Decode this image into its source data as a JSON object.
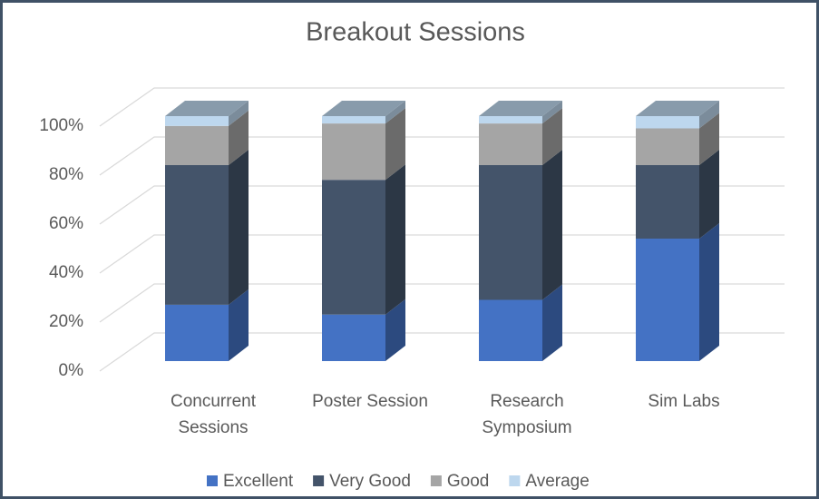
{
  "chart_data": {
    "type": "bar3d_stacked",
    "title": "Breakout Sessions",
    "categories": [
      "Concurrent Sessions",
      "Poster Session",
      "Research Symposium",
      "Sim Labs"
    ],
    "series": [
      {
        "name": "Excellent",
        "color": "#4472c4",
        "values": [
          23,
          19,
          25,
          50
        ]
      },
      {
        "name": "Very Good",
        "color": "#44546a",
        "values": [
          57,
          55,
          55,
          30
        ]
      },
      {
        "name": "Good",
        "color": "#a5a5a5",
        "values": [
          16,
          23,
          17,
          15
        ]
      },
      {
        "name": "Average",
        "color": "#bdd7ee",
        "values": [
          4,
          3,
          3,
          5
        ]
      }
    ],
    "ylim": [
      0,
      100
    ],
    "yticks": [
      {
        "value": 0,
        "label": "0%"
      },
      {
        "value": 20,
        "label": "20%"
      },
      {
        "value": 40,
        "label": "40%"
      },
      {
        "value": 60,
        "label": "60%"
      },
      {
        "value": 80,
        "label": "80%"
      },
      {
        "value": 100,
        "label": "100%"
      }
    ],
    "grid": true,
    "legend": "bottom"
  }
}
